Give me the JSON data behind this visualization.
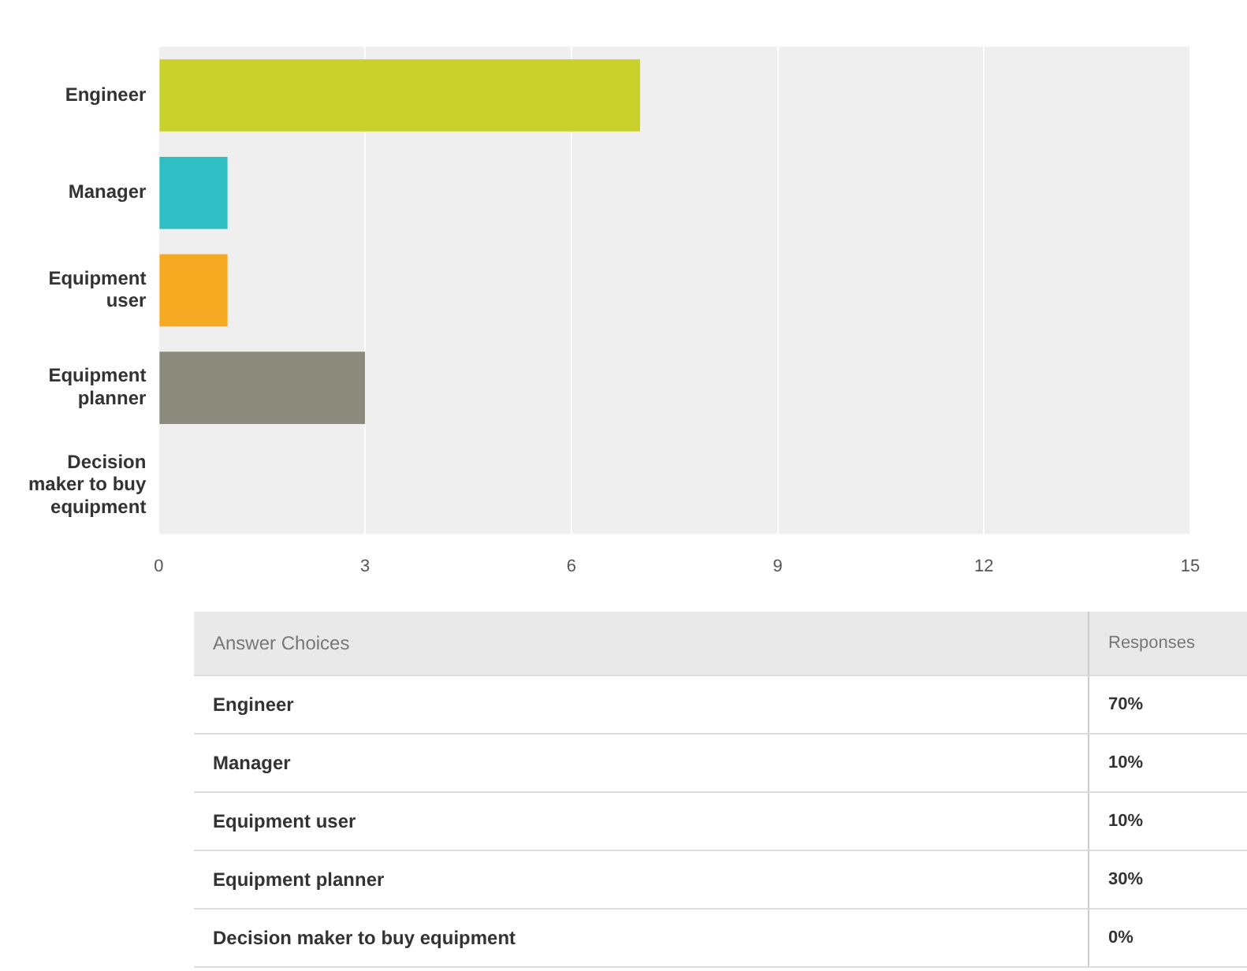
{
  "chart_data": [
    {
      "type": "bar",
      "orientation": "horizontal",
      "categories": [
        "Engineer",
        "Manager",
        "Equipment user",
        "Equipment planner",
        "Decision maker to buy equipment"
      ],
      "values": [
        7,
        1,
        1,
        3,
        0
      ],
      "colors": [
        "#c8d22a",
        "#2fbec3",
        "#f5aa22",
        "#8b8b7d",
        "#9e9e9e"
      ],
      "xlim": [
        0,
        15
      ],
      "xticks": [
        0,
        3,
        6,
        9,
        12,
        15
      ],
      "grid": "x"
    },
    {
      "type": "other",
      "categories": [
        "Engineer",
        "Manager",
        "Equipment user",
        "Equipment planner",
        "Decision maker to buy equipment"
      ],
      "value_labels": [
        "70%",
        "10%",
        "10%",
        "30%",
        "0%"
      ],
      "annotations": [
        "Answer Choices",
        "Responses"
      ]
    }
  ]
}
